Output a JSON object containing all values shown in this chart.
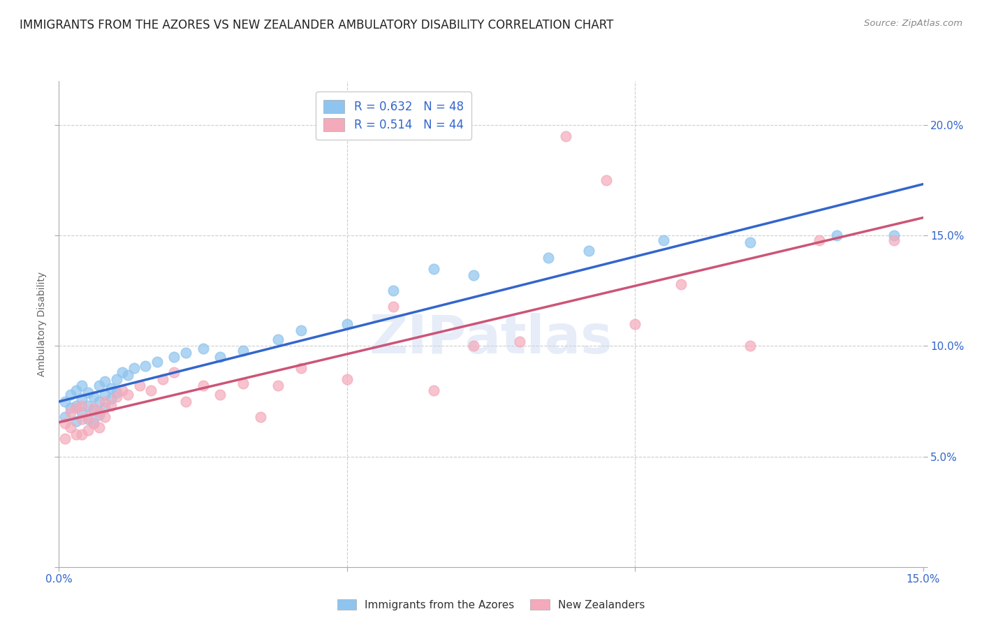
{
  "title": "IMMIGRANTS FROM THE AZORES VS NEW ZEALANDER AMBULATORY DISABILITY CORRELATION CHART",
  "source": "Source: ZipAtlas.com",
  "ylabel": "Ambulatory Disability",
  "xlim": [
    0.0,
    0.15
  ],
  "ylim": [
    0.0,
    0.22
  ],
  "ytick_vals": [
    0.0,
    0.05,
    0.1,
    0.15,
    0.2
  ],
  "ytick_labels_right": [
    "",
    "5.0%",
    "10.0%",
    "15.0%",
    "20.0%"
  ],
  "xtick_vals": [
    0.0,
    0.05,
    0.1,
    0.15
  ],
  "xtick_labels": [
    "0.0%",
    "",
    "",
    "15.0%"
  ],
  "blue_color": "#8EC4EE",
  "pink_color": "#F4AABB",
  "blue_line_color": "#3366CC",
  "pink_line_color": "#CC5577",
  "legend_text1": "R = 0.632   N = 48",
  "legend_text2": "R = 0.514   N = 44",
  "watermark": "ZIPatlas",
  "blue_x": [
    0.001,
    0.001,
    0.002,
    0.002,
    0.003,
    0.003,
    0.003,
    0.004,
    0.004,
    0.004,
    0.005,
    0.005,
    0.005,
    0.006,
    0.006,
    0.006,
    0.007,
    0.007,
    0.007,
    0.008,
    0.008,
    0.008,
    0.009,
    0.009,
    0.01,
    0.01,
    0.011,
    0.012,
    0.013,
    0.015,
    0.017,
    0.02,
    0.022,
    0.025,
    0.028,
    0.032,
    0.038,
    0.042,
    0.05,
    0.058,
    0.065,
    0.072,
    0.085,
    0.092,
    0.105,
    0.12,
    0.135,
    0.145
  ],
  "blue_y": [
    0.075,
    0.068,
    0.078,
    0.072,
    0.08,
    0.073,
    0.066,
    0.082,
    0.076,
    0.07,
    0.079,
    0.073,
    0.067,
    0.077,
    0.071,
    0.065,
    0.082,
    0.075,
    0.069,
    0.084,
    0.078,
    0.072,
    0.081,
    0.076,
    0.085,
    0.079,
    0.088,
    0.087,
    0.09,
    0.091,
    0.093,
    0.095,
    0.097,
    0.099,
    0.095,
    0.098,
    0.103,
    0.107,
    0.11,
    0.125,
    0.135,
    0.132,
    0.14,
    0.143,
    0.148,
    0.147,
    0.15,
    0.15
  ],
  "pink_x": [
    0.001,
    0.001,
    0.002,
    0.002,
    0.003,
    0.003,
    0.004,
    0.004,
    0.004,
    0.005,
    0.005,
    0.006,
    0.006,
    0.007,
    0.007,
    0.008,
    0.008,
    0.009,
    0.01,
    0.011,
    0.012,
    0.014,
    0.016,
    0.018,
    0.02,
    0.022,
    0.025,
    0.028,
    0.032,
    0.035,
    0.038,
    0.042,
    0.05,
    0.058,
    0.065,
    0.072,
    0.08,
    0.088,
    0.095,
    0.1,
    0.108,
    0.12,
    0.132,
    0.145
  ],
  "pink_y": [
    0.065,
    0.058,
    0.07,
    0.063,
    0.06,
    0.072,
    0.067,
    0.06,
    0.073,
    0.068,
    0.062,
    0.072,
    0.065,
    0.07,
    0.063,
    0.075,
    0.068,
    0.073,
    0.077,
    0.08,
    0.078,
    0.082,
    0.08,
    0.085,
    0.088,
    0.075,
    0.082,
    0.078,
    0.083,
    0.068,
    0.082,
    0.09,
    0.085,
    0.118,
    0.08,
    0.1,
    0.102,
    0.195,
    0.175,
    0.11,
    0.128,
    0.1,
    0.148,
    0.148
  ]
}
